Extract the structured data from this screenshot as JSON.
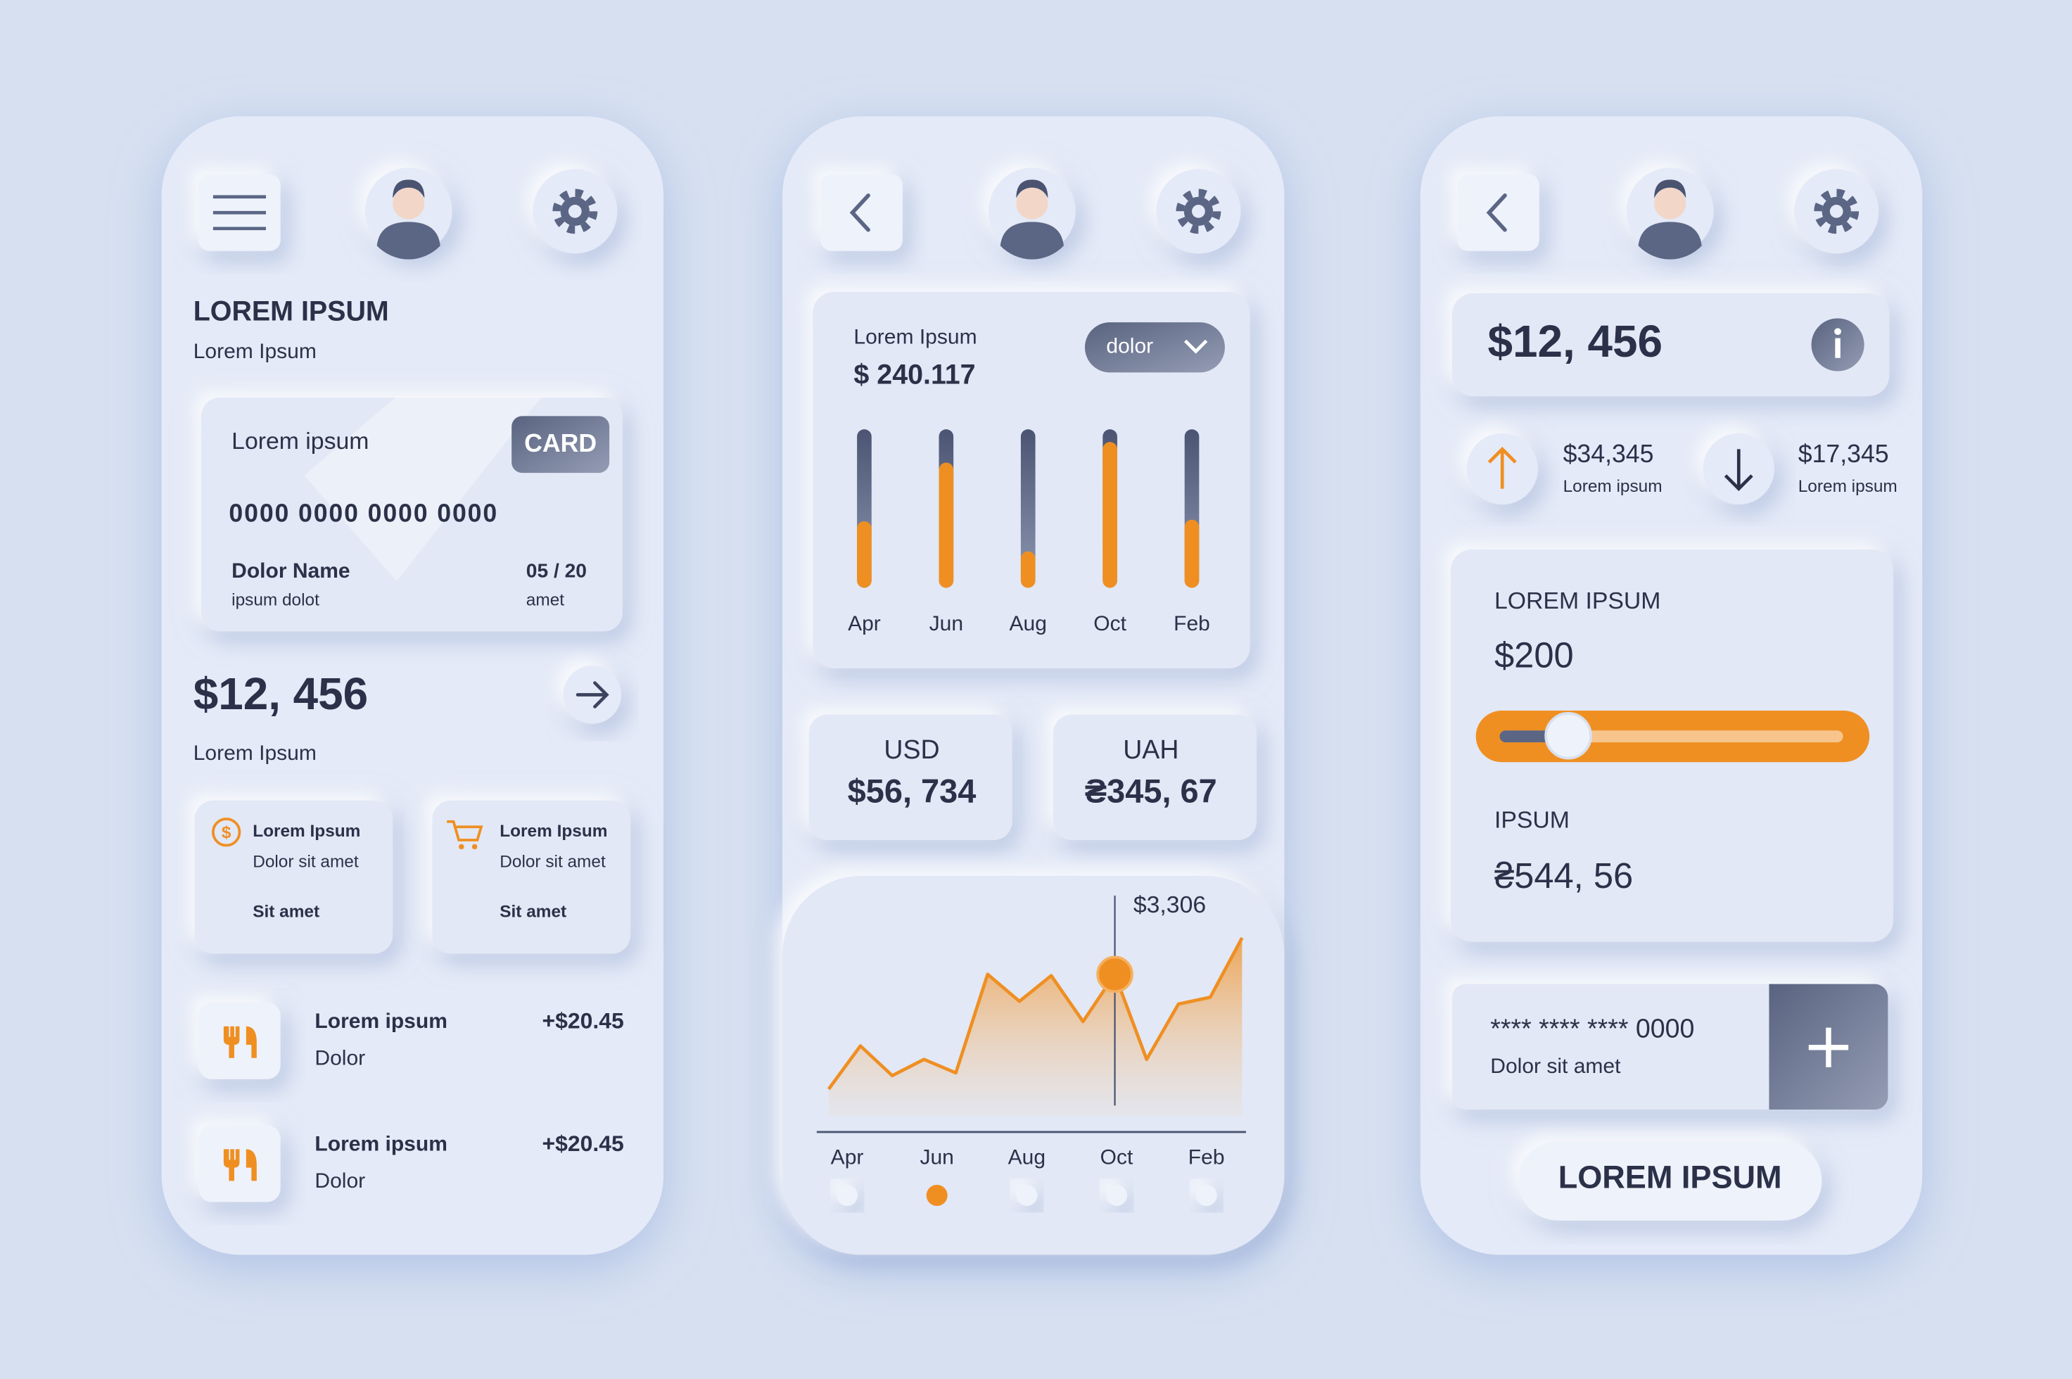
{
  "screens": [
    {
      "title": "LOREM IPSUM",
      "subtitle": "Lorem Ipsum",
      "card": {
        "label": "Lorem ipsum",
        "badge": "CARD",
        "number": "0000 0000 0000 0000",
        "name": "Dolor Name",
        "name_sub": "ipsum dolot",
        "expiry": "05 / 20",
        "expiry_sub": "amet"
      },
      "balance": "$12, 456",
      "balance_label": "Lorem Ipsum",
      "tiles": [
        {
          "title": "Lorem Ipsum",
          "text": "Dolor sit amet",
          "footer": "Sit amet"
        },
        {
          "title": "Lorem Ipsum",
          "text": "Dolor sit amet",
          "footer": "Sit amet"
        }
      ],
      "transactions": [
        {
          "title": "Lorem ipsum",
          "sub": "Dolor",
          "amount": "+$20.45"
        },
        {
          "title": "Lorem ipsum",
          "sub": "Dolor",
          "amount": "+$20.45"
        }
      ]
    },
    {
      "bar_chart": {
        "label": "Lorem Ipsum",
        "value": "$ 240.117",
        "dropdown": "dolor",
        "categories": [
          "Apr",
          "Jun",
          "Aug",
          "Oct",
          "Feb"
        ],
        "values": [
          42,
          79,
          23,
          92,
          43
        ]
      },
      "currencies": [
        {
          "code": "USD",
          "amount": "$56, 734"
        },
        {
          "code": "UAH",
          "amount": "₴345, 67"
        }
      ],
      "area_chart": {
        "annotation": "$3,306",
        "highlight": 9,
        "values": [
          20,
          52,
          30,
          42,
          32,
          105,
          85,
          104,
          70,
          105,
          42,
          83,
          88,
          132
        ],
        "categories": [
          "Apr",
          "Jun",
          "Aug",
          "Oct",
          "Feb"
        ],
        "selected": 1
      }
    },
    {
      "balance": "$12, 456",
      "stats": [
        {
          "value": "$34,345",
          "label": "Lorem ipsum"
        },
        {
          "value": "$17,345",
          "label": "Lorem ipsum"
        }
      ],
      "slider_card": {
        "title": "LOREM IPSUM",
        "value": "$200",
        "slider": 20,
        "label2": "IPSUM",
        "value2": "₴544, 56"
      },
      "card_row": {
        "masked": "**** **** **** 0000",
        "sub": "Dolor sit amet"
      },
      "button": "LOREM IPSUM"
    }
  ]
}
